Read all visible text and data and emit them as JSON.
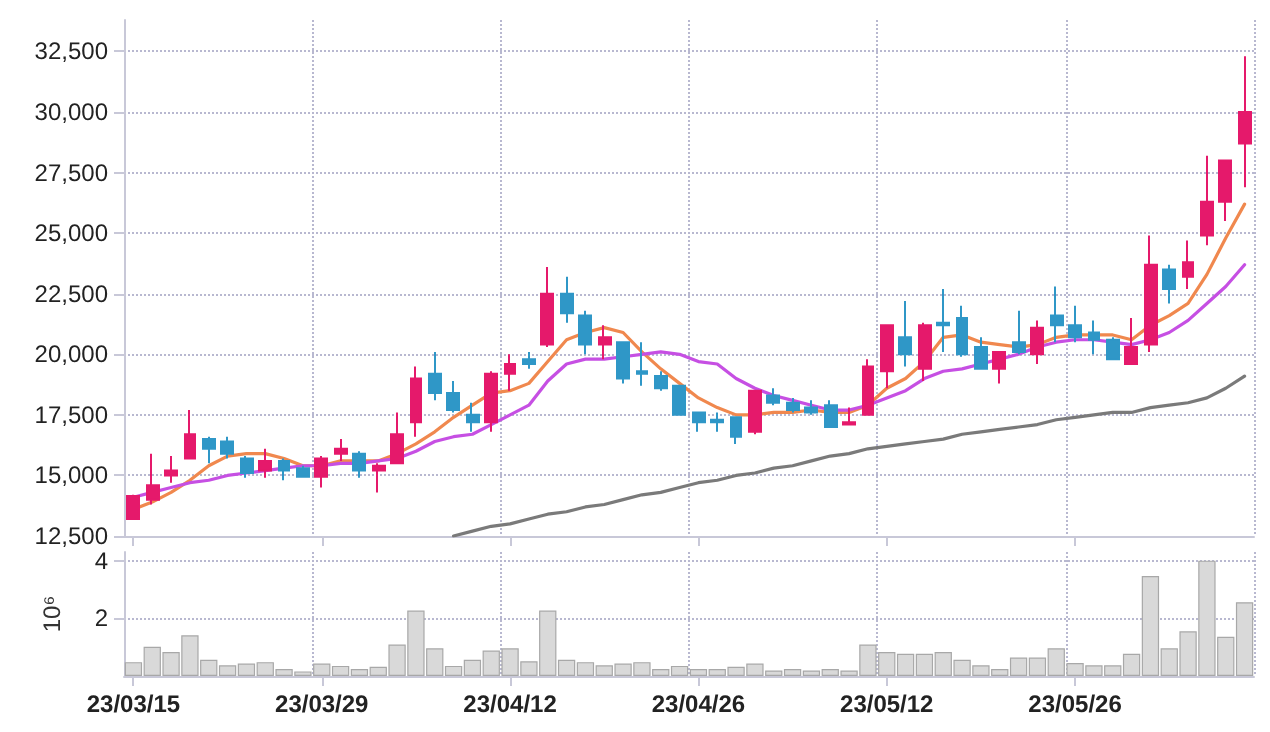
{
  "chart_data": [
    {
      "type": "candlestick",
      "categories": [
        null,
        null,
        null,
        null,
        null,
        null,
        null,
        null,
        null,
        null,
        null,
        null,
        null,
        null,
        null,
        null,
        null,
        null,
        null,
        null,
        null,
        null,
        null,
        null,
        null,
        null,
        null,
        null,
        null,
        null,
        null,
        null,
        null,
        null,
        null,
        null,
        null,
        null,
        null,
        null,
        null,
        null,
        null,
        null,
        null,
        null,
        null,
        null,
        null,
        null,
        null,
        null,
        null,
        null,
        null,
        null,
        null,
        null,
        null,
        null
      ],
      "ohlc": [
        [
          13200,
          14200,
          13200,
          14150
        ],
        [
          14000,
          15900,
          13800,
          14600
        ],
        [
          15000,
          15800,
          14700,
          15200
        ],
        [
          15700,
          17700,
          15700,
          16700
        ],
        [
          16500,
          16600,
          15500,
          16100
        ],
        [
          16400,
          16600,
          15700,
          15900
        ],
        [
          15700,
          15800,
          14900,
          15100
        ],
        [
          15200,
          16100,
          14900,
          15600
        ],
        [
          15600,
          15700,
          14800,
          15200
        ],
        [
          15300,
          15400,
          14900,
          14950
        ],
        [
          14950,
          15800,
          14500,
          15700
        ],
        [
          15900,
          16500,
          15600,
          16100
        ],
        [
          15900,
          16000,
          14900,
          15200
        ],
        [
          15200,
          15500,
          14300,
          15400
        ],
        [
          15500,
          17600,
          15500,
          16700
        ],
        [
          17200,
          19500,
          16600,
          19000
        ],
        [
          19200,
          20100,
          18100,
          18400
        ],
        [
          18400,
          18900,
          17600,
          17700
        ],
        [
          17500,
          18000,
          16800,
          17200
        ],
        [
          17200,
          19300,
          16800,
          19200
        ],
        [
          19200,
          20000,
          18500,
          19600
        ],
        [
          19800,
          20100,
          19400,
          19600
        ],
        [
          20400,
          23600,
          20300,
          22500
        ],
        [
          22500,
          23200,
          21300,
          21700
        ],
        [
          21600,
          21800,
          20000,
          20400
        ],
        [
          20400,
          21200,
          19800,
          20700
        ],
        [
          20500,
          20500,
          18800,
          19000
        ],
        [
          19300,
          20500,
          18700,
          19200
        ],
        [
          19100,
          19300,
          18500,
          18600
        ],
        [
          18700,
          18700,
          17500,
          17500
        ],
        [
          17600,
          17600,
          16800,
          17200
        ],
        [
          17300,
          17600,
          16800,
          17200
        ],
        [
          17400,
          17400,
          16300,
          16600
        ],
        [
          16800,
          18500,
          16700,
          18500
        ],
        [
          18300,
          18600,
          17900,
          18000
        ],
        [
          18000,
          18200,
          17600,
          17700
        ],
        [
          17800,
          18100,
          17500,
          17600
        ],
        [
          17900,
          18100,
          17000,
          17000
        ],
        [
          17100,
          17800,
          17100,
          17200
        ],
        [
          17500,
          19800,
          17500,
          19500
        ],
        [
          19300,
          21200,
          18600,
          21200
        ],
        [
          20700,
          22200,
          19500,
          20000
        ],
        [
          19400,
          21300,
          18900,
          21200
        ],
        [
          21300,
          22700,
          20100,
          21200
        ],
        [
          21500,
          22000,
          19900,
          20000
        ],
        [
          20300,
          20700,
          19400,
          19400
        ],
        [
          19400,
          20100,
          18800,
          20100
        ],
        [
          20500,
          21800,
          20000,
          20100
        ],
        [
          20000,
          21400,
          19600,
          21100
        ],
        [
          21600,
          22800,
          20500,
          21200
        ],
        [
          21200,
          22000,
          20500,
          20700
        ],
        [
          20900,
          21400,
          20000,
          20600
        ],
        [
          20600,
          20700,
          19800,
          19800
        ],
        [
          19600,
          21500,
          19600,
          20300
        ],
        [
          20400,
          24900,
          20100,
          23700
        ],
        [
          23500,
          23700,
          22100,
          22700
        ],
        [
          23200,
          24700,
          22700,
          23800
        ],
        [
          24900,
          28200,
          24500,
          26300
        ],
        [
          26300,
          28000,
          25500,
          28000
        ],
        [
          28700,
          32300,
          26900,
          30000
        ]
      ],
      "colors": [
        "#e5196b",
        "#e5196b",
        "#e5196b",
        "#e5196b",
        "#2f97c7",
        "#2f97c7",
        "#2f97c7",
        "#e5196b",
        "#2f97c7",
        "#2f97c7",
        "#e5196b",
        "#e5196b",
        "#2f97c7",
        "#e5196b",
        "#e5196b",
        "#e5196b",
        "#2f97c7",
        "#2f97c7",
        "#2f97c7",
        "#e5196b",
        "#e5196b",
        "#2f97c7",
        "#e5196b",
        "#2f97c7",
        "#2f97c7",
        "#e5196b",
        "#2f97c7",
        "#2f97c7",
        "#2f97c7",
        "#2f97c7",
        "#2f97c7",
        "#2f97c7",
        "#2f97c7",
        "#e5196b",
        "#2f97c7",
        "#2f97c7",
        "#2f97c7",
        "#2f97c7",
        "#e5196b",
        "#e5196b",
        "#e5196b",
        "#2f97c7",
        "#e5196b",
        "#2f97c7",
        "#2f97c7",
        "#2f97c7",
        "#e5196b",
        "#2f97c7",
        "#e5196b",
        "#2f97c7",
        "#2f97c7",
        "#2f97c7",
        "#2f97c7",
        "#e5196b",
        "#e5196b",
        "#2f97c7",
        "#e5196b",
        "#e5196b",
        "#e5196b",
        "#e5196b"
      ],
      "series": [
        {
          "type": "line",
          "color": "#f0884e",
          "values": [
            13600,
            13900,
            14300,
            14800,
            15400,
            15800,
            15900,
            15900,
            15700,
            15400,
            15400,
            15600,
            15600,
            15600,
            15900,
            16300,
            16800,
            17400,
            17900,
            18400,
            18500,
            18800,
            19700,
            20600,
            20900,
            21100,
            20900,
            20100,
            19400,
            18800,
            18200,
            17800,
            17500,
            17500,
            17600,
            17600,
            17700,
            17600,
            17600,
            17900,
            18600,
            19000,
            19700,
            20700,
            20800,
            20500,
            20400,
            20300,
            20400,
            20700,
            20800,
            20800,
            20800,
            20600,
            21200,
            21600,
            22100,
            23300,
            24800,
            26200
          ]
        },
        {
          "type": "line",
          "color": "#c64fe3",
          "values": [
            14100,
            14300,
            14500,
            14700,
            14800,
            15000,
            15100,
            15200,
            15300,
            15400,
            15400,
            15500,
            15500,
            15600,
            15700,
            16000,
            16400,
            16600,
            16700,
            17100,
            17500,
            17900,
            18900,
            19600,
            19800,
            19800,
            19900,
            20000,
            20100,
            20000,
            19700,
            19600,
            19000,
            18600,
            18300,
            18100,
            17900,
            17700,
            17700,
            17900,
            18200,
            18500,
            19000,
            19300,
            19400,
            19600,
            19800,
            20000,
            20300,
            20500,
            20600,
            20600,
            20500,
            20400,
            20600,
            20900,
            21400,
            22100,
            22800,
            23700
          ]
        },
        {
          "type": "line",
          "color": "#7a7a7a",
          "values": [
            null,
            null,
            null,
            null,
            null,
            null,
            null,
            null,
            null,
            null,
            null,
            null,
            null,
            null,
            null,
            null,
            null,
            12500,
            12700,
            12900,
            13000,
            13200,
            13400,
            13500,
            13700,
            13800,
            14000,
            14200,
            14300,
            14500,
            14700,
            14800,
            15000,
            15100,
            15300,
            15400,
            15600,
            15800,
            15900,
            16100,
            16200,
            16300,
            16400,
            16500,
            16700,
            16800,
            16900,
            17000,
            17100,
            17300,
            17400,
            17500,
            17600,
            17600,
            17800,
            17900,
            18000,
            18200,
            18600,
            19100
          ]
        }
      ],
      "ylim": [
        12500,
        33800
      ],
      "yticks": [
        {
          "value": 12500,
          "label": "12,500"
        },
        {
          "value": 15000,
          "label": "15,000"
        },
        {
          "value": 17500,
          "label": "17,500"
        },
        {
          "value": 20000,
          "label": "20,000"
        },
        {
          "value": 22500,
          "label": "22,500"
        },
        {
          "value": 25000,
          "label": "25,000"
        },
        {
          "value": 27500,
          "label": "27,500"
        },
        {
          "value": 30000,
          "label": "30,000"
        },
        {
          "value": 32500,
          "label": "32,500"
        }
      ],
      "grid": true,
      "marker": "none",
      "line_style": "solid",
      "tick_labels": "y"
    },
    {
      "type": "bar",
      "categories": [
        "23/03/15",
        null,
        null,
        null,
        null,
        null,
        null,
        null,
        null,
        null,
        "23/03/29",
        null,
        null,
        null,
        null,
        null,
        null,
        null,
        null,
        null,
        "23/04/12",
        null,
        null,
        null,
        null,
        null,
        null,
        null,
        null,
        null,
        "23/04/26",
        null,
        null,
        null,
        null,
        null,
        null,
        null,
        null,
        null,
        "23/05/12",
        null,
        null,
        null,
        null,
        null,
        null,
        null,
        null,
        null,
        "23/05/26",
        null,
        null,
        null,
        null,
        null,
        null,
        null,
        null,
        null
      ],
      "values": [
        0.48,
        1.01,
        0.83,
        1.41,
        0.56,
        0.37,
        0.43,
        0.48,
        0.24,
        0.16,
        0.43,
        0.35,
        0.24,
        0.32,
        1.09,
        2.27,
        0.96,
        0.35,
        0.56,
        0.88,
        0.96,
        0.51,
        2.27,
        0.56,
        0.48,
        0.37,
        0.43,
        0.48,
        0.24,
        0.35,
        0.24,
        0.24,
        0.32,
        0.43,
        0.19,
        0.24,
        0.19,
        0.24,
        0.19,
        1.09,
        0.83,
        0.77,
        0.77,
        0.83,
        0.56,
        0.37,
        0.24,
        0.64,
        0.64,
        0.96,
        0.45,
        0.37,
        0.37,
        0.77,
        3.47,
        0.96,
        1.55,
        4.0,
        1.36,
        2.56
      ],
      "color": "#d9d9d9",
      "ylabel": "10⁶",
      "ylim": [
        0,
        4.3
      ],
      "yticks": [
        2,
        4
      ],
      "grid": true
    }
  ]
}
